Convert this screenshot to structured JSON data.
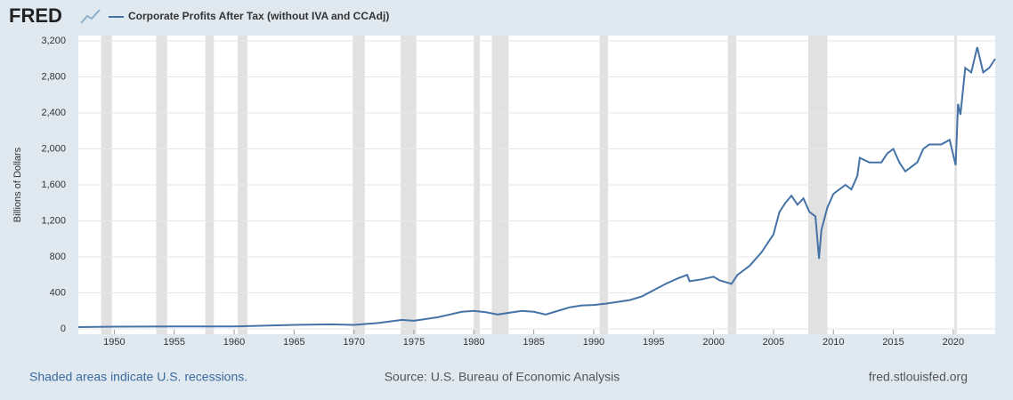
{
  "logo": "FRED",
  "chart_data": {
    "type": "line",
    "ylabel": "Billions of Dollars",
    "x": [
      1947,
      1950,
      1955,
      1960,
      1965,
      1968,
      1970,
      1972,
      1974,
      1975,
      1977,
      1979,
      1980,
      1981,
      1982,
      1984,
      1985,
      1986,
      1987,
      1988,
      1989,
      1990,
      1991,
      1992,
      1993,
      1994,
      1995,
      1996,
      1997,
      1997.8,
      1998,
      1999,
      2000,
      2000.5,
      2001,
      2001.5,
      2002,
      2003,
      2004,
      2005,
      2005.5,
      2006,
      2006.5,
      2007,
      2007.5,
      2008,
      2008.5,
      2008.8,
      2009,
      2009.5,
      2010,
      2011,
      2011.5,
      2012,
      2012.2,
      2013,
      2014,
      2014.5,
      2015,
      2015.5,
      2016,
      2017,
      2017.5,
      2018,
      2018.5,
      2019,
      2019.7,
      2020.2,
      2020.4,
      2020.6,
      2021,
      2021.5,
      2022,
      2022.5,
      2023,
      2023.5
    ],
    "series": [
      {
        "name": "Corporate Profits After Tax (without IVA and CCAdj)",
        "color": "#4572a7",
        "values": [
          20,
          25,
          27,
          27,
          45,
          50,
          45,
          65,
          100,
          90,
          130,
          190,
          200,
          185,
          160,
          200,
          190,
          160,
          200,
          240,
          260,
          265,
          280,
          300,
          320,
          360,
          430,
          500,
          560,
          600,
          530,
          550,
          580,
          540,
          520,
          500,
          600,
          700,
          850,
          1050,
          1300,
          1400,
          1480,
          1380,
          1450,
          1300,
          1250,
          780,
          1100,
          1350,
          1500,
          1600,
          1550,
          1700,
          1900,
          1850,
          1850,
          1950,
          2000,
          1850,
          1750,
          1850,
          2000,
          2050,
          2050,
          2050,
          2100,
          1820,
          2500,
          2380,
          2900,
          2850,
          3130,
          2850,
          2900,
          3000
        ]
      }
    ],
    "recessions": [
      [
        1948.9,
        1949.8
      ],
      [
        1953.5,
        1954.4
      ],
      [
        1957.6,
        1958.3
      ],
      [
        1960.3,
        1961.1
      ],
      [
        1969.9,
        1970.9
      ],
      [
        1973.9,
        1975.2
      ],
      [
        1980.0,
        1980.5
      ],
      [
        1981.5,
        1982.9
      ],
      [
        1990.5,
        1991.2
      ],
      [
        2001.2,
        2001.9
      ],
      [
        2007.9,
        2009.5
      ],
      [
        2020.1,
        2020.3
      ]
    ],
    "recession_color": "#e1e1e1",
    "xlim": [
      1947,
      2023.5
    ],
    "xticks": [
      1950,
      1955,
      1960,
      1965,
      1970,
      1975,
      1980,
      1985,
      1990,
      1995,
      2000,
      2005,
      2010,
      2015,
      2020
    ],
    "ylim": [
      0,
      3200
    ],
    "yticks": [
      0,
      400,
      800,
      {
        "value": 1200,
        "label": "1,200"
      },
      {
        "value": 1600,
        "label": "1,600"
      },
      {
        "value": 2000,
        "label": "2,000"
      },
      {
        "value": 2400,
        "label": "2,400"
      },
      {
        "value": 2800,
        "label": "2,800"
      },
      {
        "value": 3200,
        "label": "3,200"
      }
    ],
    "grid": true
  },
  "footer": {
    "left": "Shaded areas indicate U.S. recessions.",
    "center": "Source: U.S. Bureau of Economic Analysis",
    "right": "fred.stlouisfed.org"
  }
}
